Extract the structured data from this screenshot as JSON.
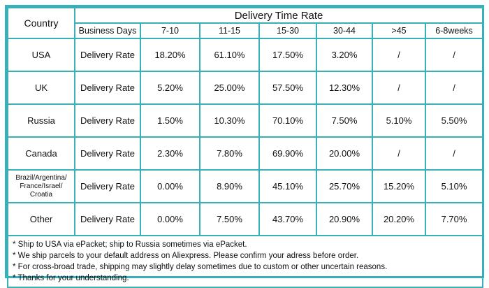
{
  "header": {
    "country": "Country",
    "title": "Delivery Time Rate",
    "business_days": "Business Days",
    "columns": [
      "7-10",
      "11-15",
      "15-30",
      "30-44",
      ">45",
      "6-8weeks"
    ]
  },
  "rows": [
    {
      "country": "USA",
      "label": "Delivery Rate",
      "values": [
        "18.20%",
        "61.10%",
        "17.50%",
        "3.20%",
        "/",
        "/"
      ]
    },
    {
      "country": "UK",
      "label": "Delivery Rate",
      "values": [
        "5.20%",
        "25.00%",
        "57.50%",
        "12.30%",
        "/",
        "/"
      ]
    },
    {
      "country": "Russia",
      "label": "Delivery Rate",
      "values": [
        "1.50%",
        "10.30%",
        "70.10%",
        "7.50%",
        "5.10%",
        "5.50%"
      ]
    },
    {
      "country": "Canada",
      "label": "Delivery Rate",
      "values": [
        "2.30%",
        "7.80%",
        "69.90%",
        "20.00%",
        "/",
        "/"
      ]
    },
    {
      "country": "Brazil/Argentina/ France/Israel/ Croatia",
      "label": "Delivery Rate",
      "values": [
        "0.00%",
        "8.90%",
        "45.10%",
        "25.70%",
        "15.20%",
        "5.10%"
      ]
    },
    {
      "country": "Other",
      "label": "Delivery Rate",
      "values": [
        "0.00%",
        "7.50%",
        "43.70%",
        "20.90%",
        "20.20%",
        "7.70%"
      ]
    }
  ],
  "notes": [
    "* Ship to USA via ePacket; ship to Russia sometimes via ePacket.",
    "* We ship parcels to your default address on Aliexpress. Please confirm your adress before order.",
    "* For cross-broad trade, shipping may slightly delay sometimes due to custom or other uncertain reasons.",
    "* Thanks for your understanding."
  ],
  "colors": {
    "border": "#39b0b8"
  }
}
